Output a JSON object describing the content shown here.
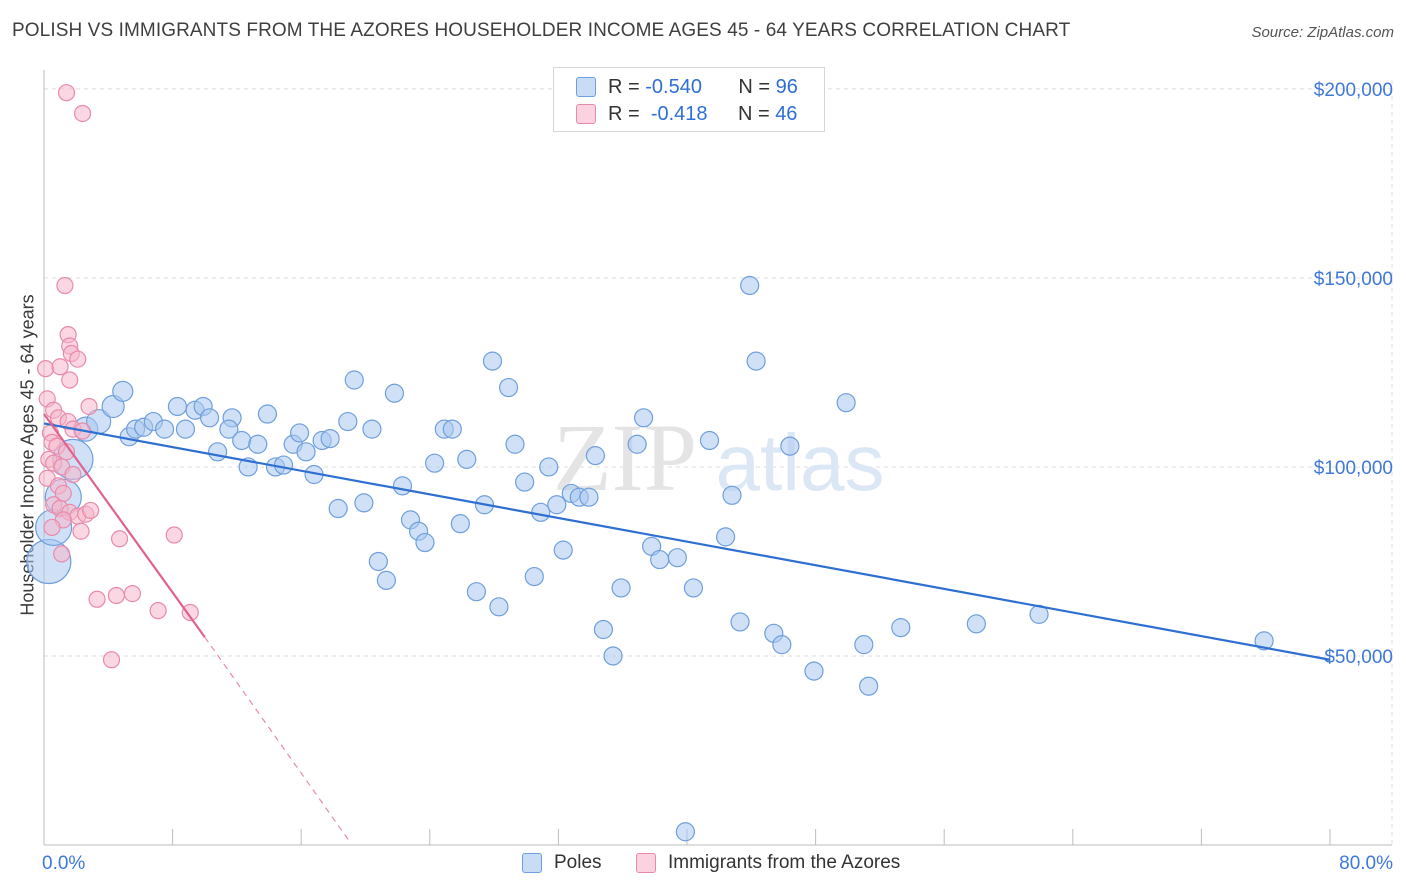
{
  "header": {
    "title": "POLISH VS IMMIGRANTS FROM THE AZORES HOUSEHOLDER INCOME AGES 45 - 64 YEARS CORRELATION CHART",
    "source": "Source: ZipAtlas.com"
  },
  "watermark": {
    "zip": "ZIP",
    "atlas": "atlas"
  },
  "legend": {
    "rows": [
      {
        "r_label": "R =",
        "r_value": "-0.540",
        "n_label": "N =",
        "n_value": "96"
      },
      {
        "r_label": "R =",
        "r_value": "-0.418",
        "n_label": "N =",
        "n_value": "46"
      }
    ]
  },
  "colors": {
    "poles_fill": "#a9c8f0",
    "poles_stroke": "#6f9fdc",
    "poles_line": "#2e6fd1",
    "azores_fill": "#f6b6cb",
    "azores_stroke": "#e98aaa",
    "azores_line": "#e0628f",
    "tick_label": "#3f78d8"
  },
  "chart_data": {
    "type": "scatter",
    "title": "POLISH VS IMMIGRANTS FROM THE AZORES HOUSEHOLDER INCOME AGES 45 - 64 YEARS CORRELATION CHART",
    "xlabel": "",
    "ylabel": "Householder Income Ages 45 - 64 years",
    "xlim": [
      0,
      80
    ],
    "ylim": [
      0,
      205000
    ],
    "x_tick_labels": [
      "0.0%",
      "80.0%"
    ],
    "y_ticks": [
      50000,
      100000,
      150000,
      200000
    ],
    "y_tick_labels": [
      "$50,000",
      "$100,000",
      "$150,000",
      "$200,000"
    ],
    "grid": true,
    "legend_position": "top-center",
    "series": [
      {
        "name": "Poles",
        "r": -0.54,
        "n": 96,
        "trend": {
          "x0": 0,
          "y0": 111500,
          "x1": 80,
          "y1": 49000
        },
        "points": [
          {
            "x": 0.3,
            "y": 75000,
            "s": 22
          },
          {
            "x": 0.6,
            "y": 84000,
            "s": 18
          },
          {
            "x": 1.2,
            "y": 92000,
            "s": 18
          },
          {
            "x": 1.8,
            "y": 102000,
            "s": 20
          },
          {
            "x": 2.6,
            "y": 110000,
            "s": 12
          },
          {
            "x": 3.4,
            "y": 112000,
            "s": 12
          },
          {
            "x": 4.3,
            "y": 116000,
            "s": 11
          },
          {
            "x": 4.9,
            "y": 120000,
            "s": 10
          },
          {
            "x": 5.3,
            "y": 108000,
            "s": 9
          },
          {
            "x": 5.7,
            "y": 110000,
            "s": 9
          },
          {
            "x": 6.2,
            "y": 110500,
            "s": 9
          },
          {
            "x": 6.8,
            "y": 112000,
            "s": 9
          },
          {
            "x": 7.5,
            "y": 110000,
            "s": 9
          },
          {
            "x": 8.3,
            "y": 116000,
            "s": 9
          },
          {
            "x": 8.8,
            "y": 110000,
            "s": 9
          },
          {
            "x": 9.4,
            "y": 115000,
            "s": 9
          },
          {
            "x": 9.9,
            "y": 116000,
            "s": 9
          },
          {
            "x": 10.3,
            "y": 113000,
            "s": 9
          },
          {
            "x": 10.8,
            "y": 104000,
            "s": 9
          },
          {
            "x": 11.7,
            "y": 113000,
            "s": 9
          },
          {
            "x": 11.5,
            "y": 110000,
            "s": 9
          },
          {
            "x": 12.3,
            "y": 107000,
            "s": 9
          },
          {
            "x": 12.7,
            "y": 100000,
            "s": 9
          },
          {
            "x": 13.3,
            "y": 106000,
            "s": 9
          },
          {
            "x": 13.9,
            "y": 114000,
            "s": 9
          },
          {
            "x": 14.4,
            "y": 100000,
            "s": 9
          },
          {
            "x": 14.9,
            "y": 100500,
            "s": 9
          },
          {
            "x": 15.5,
            "y": 106000,
            "s": 9
          },
          {
            "x": 15.9,
            "y": 109000,
            "s": 9
          },
          {
            "x": 16.3,
            "y": 104000,
            "s": 9
          },
          {
            "x": 16.8,
            "y": 98000,
            "s": 9
          },
          {
            "x": 17.3,
            "y": 107000,
            "s": 9
          },
          {
            "x": 17.8,
            "y": 107500,
            "s": 9
          },
          {
            "x": 18.3,
            "y": 89000,
            "s": 9
          },
          {
            "x": 18.9,
            "y": 112000,
            "s": 9
          },
          {
            "x": 19.3,
            "y": 123000,
            "s": 9
          },
          {
            "x": 19.9,
            "y": 90500,
            "s": 9
          },
          {
            "x": 20.4,
            "y": 110000,
            "s": 9
          },
          {
            "x": 20.8,
            "y": 75000,
            "s": 9
          },
          {
            "x": 21.3,
            "y": 70000,
            "s": 9
          },
          {
            "x": 21.8,
            "y": 119500,
            "s": 9
          },
          {
            "x": 22.3,
            "y": 95000,
            "s": 9
          },
          {
            "x": 22.8,
            "y": 86000,
            "s": 9
          },
          {
            "x": 23.3,
            "y": 83000,
            "s": 9
          },
          {
            "x": 23.7,
            "y": 80000,
            "s": 9
          },
          {
            "x": 24.3,
            "y": 101000,
            "s": 9
          },
          {
            "x": 24.9,
            "y": 110000,
            "s": 9
          },
          {
            "x": 25.4,
            "y": 110000,
            "s": 9
          },
          {
            "x": 25.9,
            "y": 85000,
            "s": 9
          },
          {
            "x": 26.3,
            "y": 102000,
            "s": 9
          },
          {
            "x": 26.9,
            "y": 67000,
            "s": 9
          },
          {
            "x": 27.4,
            "y": 90000,
            "s": 9
          },
          {
            "x": 27.9,
            "y": 128000,
            "s": 9
          },
          {
            "x": 28.3,
            "y": 63000,
            "s": 9
          },
          {
            "x": 28.9,
            "y": 121000,
            "s": 9
          },
          {
            "x": 29.3,
            "y": 106000,
            "s": 9
          },
          {
            "x": 29.9,
            "y": 96000,
            "s": 9
          },
          {
            "x": 30.5,
            "y": 71000,
            "s": 9
          },
          {
            "x": 30.9,
            "y": 88000,
            "s": 9
          },
          {
            "x": 31.4,
            "y": 100000,
            "s": 9
          },
          {
            "x": 31.9,
            "y": 90000,
            "s": 9
          },
          {
            "x": 32.3,
            "y": 78000,
            "s": 9
          },
          {
            "x": 32.8,
            "y": 93000,
            "s": 9
          },
          {
            "x": 33.3,
            "y": 92000,
            "s": 9
          },
          {
            "x": 33.9,
            "y": 92000,
            "s": 9
          },
          {
            "x": 34.3,
            "y": 103000,
            "s": 9
          },
          {
            "x": 34.8,
            "y": 57000,
            "s": 9
          },
          {
            "x": 35.4,
            "y": 50000,
            "s": 9
          },
          {
            "x": 35.9,
            "y": 68000,
            "s": 9
          },
          {
            "x": 36.9,
            "y": 106000,
            "s": 9
          },
          {
            "x": 37.3,
            "y": 113000,
            "s": 9
          },
          {
            "x": 37.8,
            "y": 79000,
            "s": 9
          },
          {
            "x": 38.3,
            "y": 75500,
            "s": 9
          },
          {
            "x": 39.4,
            "y": 76000,
            "s": 9
          },
          {
            "x": 39.9,
            "y": 3500,
            "s": 9
          },
          {
            "x": 40.4,
            "y": 68000,
            "s": 9
          },
          {
            "x": 41.4,
            "y": 107000,
            "s": 9
          },
          {
            "x": 42.4,
            "y": 81500,
            "s": 9
          },
          {
            "x": 42.8,
            "y": 92500,
            "s": 9
          },
          {
            "x": 43.3,
            "y": 59000,
            "s": 9
          },
          {
            "x": 43.9,
            "y": 148000,
            "s": 9
          },
          {
            "x": 44.3,
            "y": 128000,
            "s": 9
          },
          {
            "x": 45.4,
            "y": 56000,
            "s": 9
          },
          {
            "x": 45.9,
            "y": 53000,
            "s": 9
          },
          {
            "x": 46.4,
            "y": 105500,
            "s": 9
          },
          {
            "x": 47.9,
            "y": 46000,
            "s": 9
          },
          {
            "x": 49.9,
            "y": 117000,
            "s": 9
          },
          {
            "x": 51.0,
            "y": 53000,
            "s": 9
          },
          {
            "x": 51.3,
            "y": 42000,
            "s": 9
          },
          {
            "x": 53.3,
            "y": 57500,
            "s": 9
          },
          {
            "x": 58.0,
            "y": 58500,
            "s": 9
          },
          {
            "x": 61.9,
            "y": 61000,
            "s": 9
          },
          {
            "x": 75.9,
            "y": 54000,
            "s": 9
          }
        ]
      },
      {
        "name": "Immigrants from the Azores",
        "r": -0.418,
        "n": 46,
        "trend": {
          "x0": 0,
          "y0": 114000,
          "x1": 10,
          "y1": 55000,
          "dashed_to_x": 19,
          "dashed_to_y": 1000
        },
        "points": [
          {
            "x": 1.4,
            "y": 199000,
            "s": 8
          },
          {
            "x": 2.4,
            "y": 193500,
            "s": 8
          },
          {
            "x": 1.3,
            "y": 148000,
            "s": 8
          },
          {
            "x": 1.5,
            "y": 135000,
            "s": 8
          },
          {
            "x": 1.6,
            "y": 132000,
            "s": 8
          },
          {
            "x": 1.7,
            "y": 130000,
            "s": 8
          },
          {
            "x": 2.1,
            "y": 128500,
            "s": 8
          },
          {
            "x": 0.1,
            "y": 126000,
            "s": 8
          },
          {
            "x": 1.0,
            "y": 126500,
            "s": 8
          },
          {
            "x": 1.6,
            "y": 123000,
            "s": 8
          },
          {
            "x": 0.2,
            "y": 118000,
            "s": 8
          },
          {
            "x": 0.6,
            "y": 115000,
            "s": 8
          },
          {
            "x": 0.9,
            "y": 113000,
            "s": 8
          },
          {
            "x": 1.5,
            "y": 112000,
            "s": 8
          },
          {
            "x": 0.4,
            "y": 109000,
            "s": 8
          },
          {
            "x": 1.8,
            "y": 110000,
            "s": 8
          },
          {
            "x": 2.4,
            "y": 109500,
            "s": 8
          },
          {
            "x": 2.8,
            "y": 116000,
            "s": 8
          },
          {
            "x": 0.5,
            "y": 106500,
            "s": 8
          },
          {
            "x": 0.8,
            "y": 105500,
            "s": 8
          },
          {
            "x": 1.4,
            "y": 104000,
            "s": 8
          },
          {
            "x": 0.3,
            "y": 102000,
            "s": 8
          },
          {
            "x": 0.6,
            "y": 101000,
            "s": 8
          },
          {
            "x": 1.1,
            "y": 100000,
            "s": 8
          },
          {
            "x": 1.8,
            "y": 98000,
            "s": 8
          },
          {
            "x": 0.2,
            "y": 97000,
            "s": 8
          },
          {
            "x": 0.9,
            "y": 95000,
            "s": 8
          },
          {
            "x": 1.2,
            "y": 93000,
            "s": 8
          },
          {
            "x": 0.6,
            "y": 90000,
            "s": 8
          },
          {
            "x": 1.0,
            "y": 89000,
            "s": 8
          },
          {
            "x": 1.6,
            "y": 88000,
            "s": 8
          },
          {
            "x": 2.1,
            "y": 87000,
            "s": 8
          },
          {
            "x": 2.6,
            "y": 87500,
            "s": 8
          },
          {
            "x": 2.9,
            "y": 88500,
            "s": 8
          },
          {
            "x": 1.2,
            "y": 86000,
            "s": 8
          },
          {
            "x": 0.5,
            "y": 84000,
            "s": 8
          },
          {
            "x": 2.3,
            "y": 83000,
            "s": 8
          },
          {
            "x": 4.7,
            "y": 81000,
            "s": 8
          },
          {
            "x": 8.1,
            "y": 82000,
            "s": 8
          },
          {
            "x": 1.1,
            "y": 77000,
            "s": 8
          },
          {
            "x": 4.5,
            "y": 66000,
            "s": 8
          },
          {
            "x": 5.5,
            "y": 66500,
            "s": 8
          },
          {
            "x": 3.3,
            "y": 65000,
            "s": 8
          },
          {
            "x": 7.1,
            "y": 62000,
            "s": 8
          },
          {
            "x": 9.1,
            "y": 61500,
            "s": 8
          },
          {
            "x": 4.2,
            "y": 49000,
            "s": 8
          }
        ]
      }
    ]
  },
  "bottom_legend": {
    "poles": "Poles",
    "azores": "Immigrants from the Azores"
  }
}
